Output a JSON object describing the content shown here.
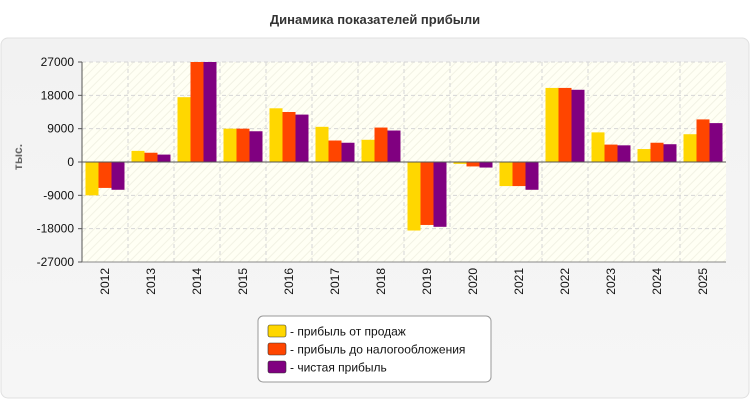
{
  "chart_data": {
    "type": "bar",
    "title": "Динамика показателей прибыли",
    "ylabel": "тыс.",
    "xlabel": "",
    "categories": [
      "2012",
      "2013",
      "2014",
      "2015",
      "2016",
      "2017",
      "2018",
      "2019",
      "2020",
      "2021",
      "2022",
      "2023",
      "2024",
      "2025"
    ],
    "ylim": [
      -27000,
      27000
    ],
    "yticks": [
      27000,
      18000,
      9000,
      0,
      -9000,
      -18000,
      -27000
    ],
    "ytick_labels": [
      "27000",
      "18000",
      "9000",
      "0",
      "-9000",
      "-18000",
      "-27000"
    ],
    "grid": true,
    "legend_placement": "bottom-center",
    "series": [
      {
        "name": "прибыль от продаж",
        "color": "#FFD700",
        "values": [
          -9000,
          3000,
          17500,
          9000,
          14500,
          9500,
          6000,
          -18500,
          -500,
          -6500,
          20000,
          8000,
          3500,
          7500
        ]
      },
      {
        "name": "прибыль до налогообложения",
        "color": "#FF4500",
        "values": [
          -7000,
          2500,
          27000,
          9000,
          13500,
          5800,
          9300,
          -17000,
          -1200,
          -6500,
          20000,
          4700,
          5200,
          11500
        ]
      },
      {
        "name": "чистая прибыль",
        "color": "#800080",
        "values": [
          -7500,
          2000,
          27000,
          8300,
          12800,
          5200,
          8500,
          -17500,
          -1500,
          -7500,
          19500,
          4500,
          4800,
          10500
        ]
      }
    ],
    "legend_prefix": "- "
  }
}
